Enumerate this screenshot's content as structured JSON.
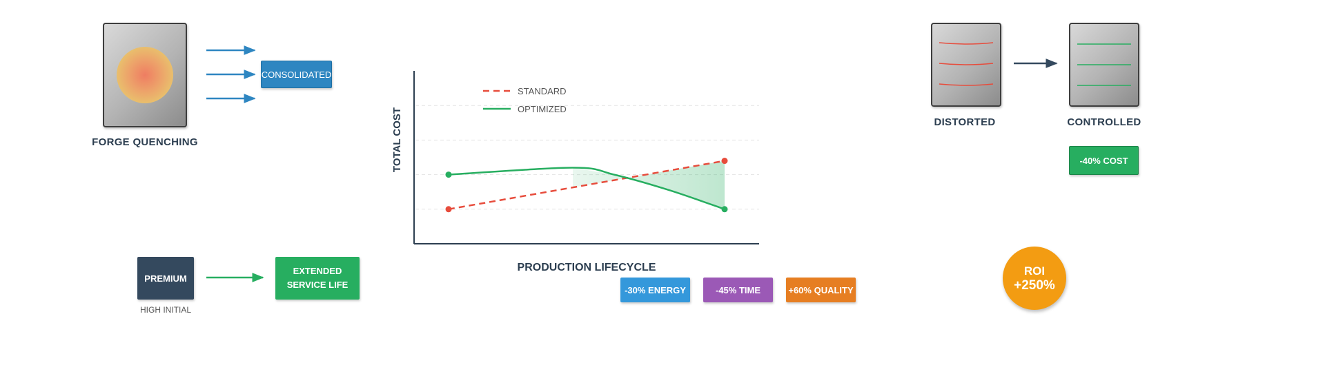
{
  "forge": {
    "caption": "FORGE QUENCHING",
    "consolidated_label": "CONSOLIDATED"
  },
  "premium": {
    "box_label": "PREMIUM",
    "sub_caption": "HIGH INITIAL",
    "result_label": "EXTENDED SERVICE LIFE"
  },
  "distortion": {
    "left_caption": "DISTORTED",
    "right_caption": "CONTROLLED",
    "cost_badge": "-40% COST"
  },
  "savings_tags": [
    {
      "label": "-30% ENERGY",
      "color": "#3498db"
    },
    {
      "label": "-45% TIME",
      "color": "#9b59b6"
    },
    {
      "label": "+60% QUALITY",
      "color": "#e67e22"
    }
  ],
  "roi": {
    "line1": "ROI",
    "line2": "+250%",
    "color": "#f39c12"
  },
  "colors": {
    "standard": "#e74c3c",
    "optimized": "#27ae60",
    "blue": "#2e86c1",
    "navy": "#34495e",
    "green": "#27ae60"
  },
  "chart_data": {
    "type": "line",
    "title": "",
    "xlabel": "PRODUCTION LIFECYCLE",
    "ylabel": "TOTAL COST",
    "grid": true,
    "legend_position": "top-left",
    "legend": [
      "STANDARD",
      "OPTIMIZED"
    ],
    "xlim": [
      0,
      1
    ],
    "ylim": [
      0,
      1
    ],
    "series": [
      {
        "name": "STANDARD",
        "style": "dashed",
        "color": "#e74c3c",
        "points": [
          [
            0,
            0.2
          ],
          [
            1,
            0.48
          ]
        ],
        "endpoint_markers": true
      },
      {
        "name": "OPTIMIZED",
        "style": "solid",
        "color": "#27ae60",
        "points": [
          [
            0,
            0.4
          ],
          [
            0.45,
            0.44
          ],
          [
            0.6,
            0.4
          ],
          [
            0.8,
            0.31
          ],
          [
            1,
            0.2
          ]
        ],
        "endpoint_markers": true
      }
    ],
    "shaded_region": {
      "from_x": 0.45,
      "to_x": 1,
      "between": [
        "STANDARD",
        "OPTIMIZED"
      ],
      "color": "#27ae60"
    }
  }
}
